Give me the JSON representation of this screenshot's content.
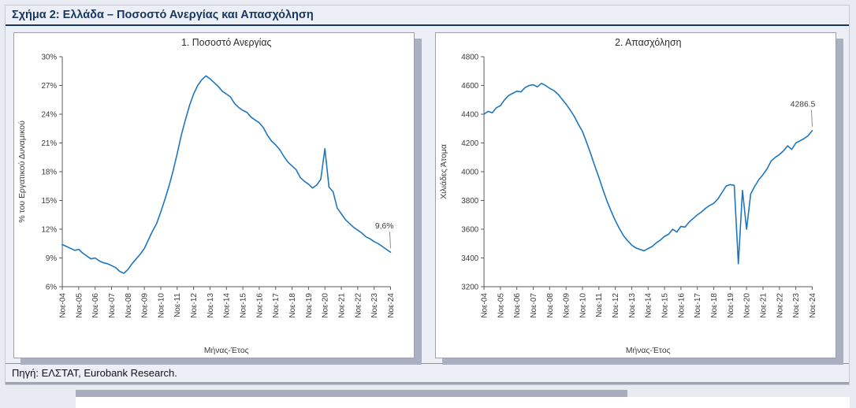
{
  "page": {
    "figure_title": "Σχήμα 2: Ελλάδα – Ποσοστό Ανεργίας και Απασχόληση",
    "source": "Πηγή: ΕΛΣΤΑΤ, Eurobank Research."
  },
  "colors": {
    "line_blue": "#1C75BC",
    "header_navy": "#17375E"
  },
  "chart_data": [
    {
      "type": "line",
      "title": "1. Ποσοστό Ανεργίας",
      "ylabel": "% του Εργατικού Δυναμικού",
      "xlabel": "Μήνας-Έτος",
      "ylim": [
        6,
        30
      ],
      "ystep": 3,
      "y_suffix": "%",
      "line_color": "#1C75BC",
      "legend": "none",
      "grid": false,
      "annotation": {
        "text": "9,6%"
      },
      "x_tick_labels": [
        "Νοε-04",
        "Νοε-05",
        "Νοε-06",
        "Νοε-07",
        "Νοε-08",
        "Νοε-09",
        "Νοε-10",
        "Νοε-11",
        "Νοε-12",
        "Νοε-13",
        "Νοε-14",
        "Νοε-15",
        "Νοε-16",
        "Νοε-17",
        "Νοε-18",
        "Νοε-19",
        "Νοε-20",
        "Νοε-21",
        "Νοε-22",
        "Νοε-23",
        "Νοε-24"
      ],
      "values": [
        10.4,
        10.2,
        10.0,
        9.8,
        9.9,
        9.5,
        9.2,
        8.9,
        9.0,
        8.7,
        8.5,
        8.4,
        8.2,
        8.0,
        7.6,
        7.4,
        7.8,
        8.4,
        8.9,
        9.4,
        10.0,
        10.9,
        11.8,
        12.6,
        13.8,
        15.1,
        16.5,
        18.1,
        19.9,
        21.8,
        23.4,
        24.9,
        26.1,
        27.0,
        27.6,
        28.0,
        27.7,
        27.3,
        26.9,
        26.4,
        26.1,
        25.8,
        25.1,
        24.7,
        24.4,
        24.2,
        23.7,
        23.4,
        23.1,
        22.6,
        21.8,
        21.2,
        20.8,
        20.3,
        19.6,
        19.0,
        18.6,
        18.2,
        17.4,
        17.0,
        16.7,
        16.3,
        16.6,
        17.2,
        20.4,
        16.4,
        15.9,
        14.2,
        13.6,
        13.0,
        12.6,
        12.2,
        11.9,
        11.6,
        11.2,
        11.0,
        10.7,
        10.5,
        10.2,
        9.9,
        9.6
      ]
    },
    {
      "type": "line",
      "title": "2. Απασχόληση",
      "ylabel": "Χιλιάδες Άτομα",
      "xlabel": "Μήνας-Έτος",
      "ylim": [
        3200,
        4800
      ],
      "ystep": 200,
      "y_suffix": "",
      "line_color": "#1C75BC",
      "legend": "none",
      "grid": false,
      "annotation": {
        "text": "4286.5"
      },
      "x_tick_labels": [
        "Νοε-04",
        "Νοε-05",
        "Νοε-06",
        "Νοε-07",
        "Νοε-08",
        "Νοε-09",
        "Νοε-10",
        "Νοε-11",
        "Νοε-12",
        "Νοε-13",
        "Νοε-14",
        "Νοε-15",
        "Νοε-16",
        "Νοε-17",
        "Νοε-18",
        "Νοε-19",
        "Νοε-20",
        "Νοε-21",
        "Νοε-22",
        "Νοε-23",
        "Νοε-24"
      ],
      "values": [
        4400,
        4420,
        4410,
        4445,
        4460,
        4500,
        4530,
        4545,
        4560,
        4555,
        4585,
        4600,
        4605,
        4590,
        4615,
        4600,
        4580,
        4565,
        4540,
        4505,
        4470,
        4430,
        4385,
        4330,
        4280,
        4205,
        4125,
        4040,
        3960,
        3875,
        3795,
        3725,
        3660,
        3605,
        3555,
        3520,
        3490,
        3470,
        3460,
        3450,
        3465,
        3480,
        3505,
        3525,
        3550,
        3565,
        3600,
        3580,
        3620,
        3615,
        3650,
        3675,
        3700,
        3720,
        3745,
        3765,
        3780,
        3810,
        3855,
        3900,
        3910,
        3905,
        3360,
        3870,
        3600,
        3845,
        3900,
        3945,
        3980,
        4020,
        4075,
        4100,
        4120,
        4145,
        4180,
        4155,
        4200,
        4215,
        4230,
        4250,
        4286.5
      ]
    }
  ]
}
